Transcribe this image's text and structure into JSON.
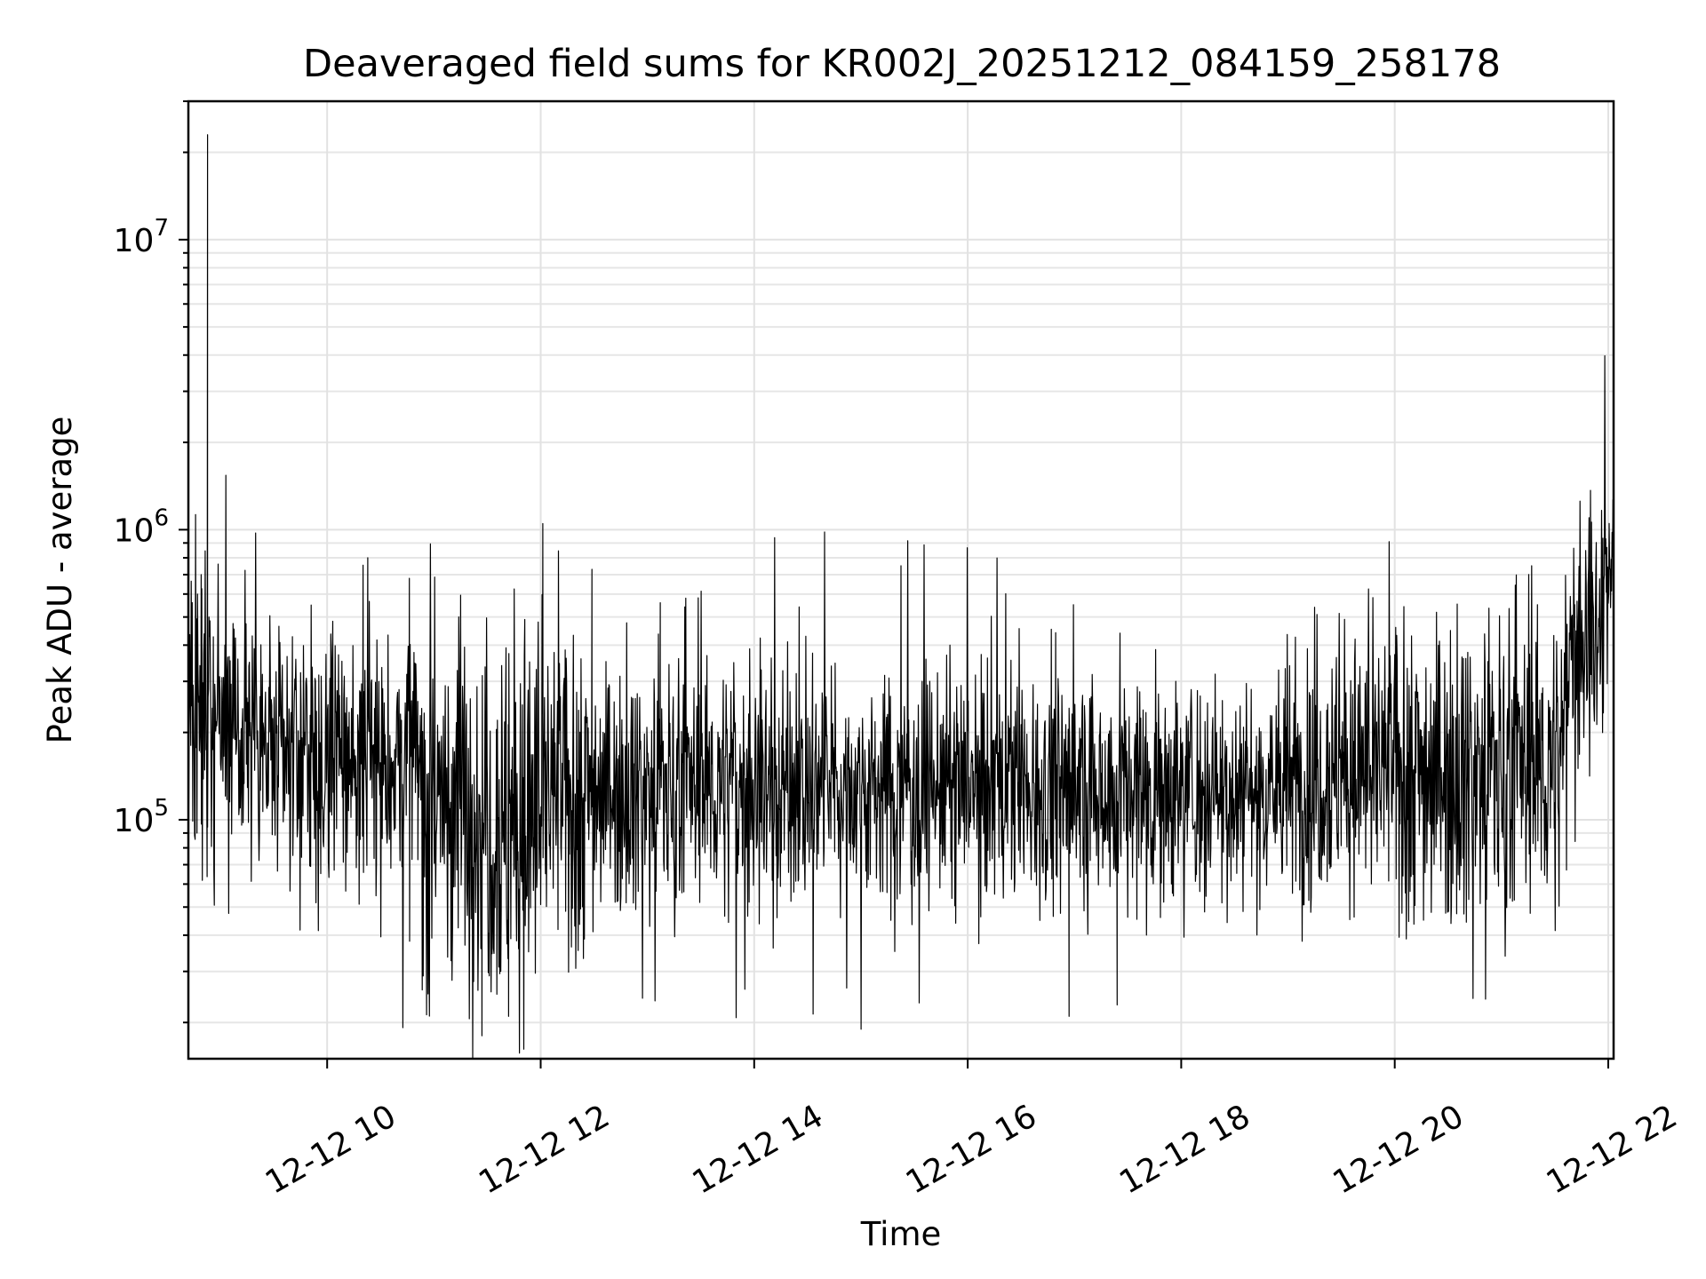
{
  "chart_data": {
    "type": "line",
    "title": "Deaveraged field sums for KR002J_20251212_084159_258178",
    "xlabel": "Time",
    "ylabel": "Peak ADU - average",
    "yscale": "log",
    "xlim_hours": [
      8.7,
      22.05
    ],
    "ylim": [
      15000,
      30000000
    ],
    "grid": true,
    "x_ticks": [
      {
        "hour": 10,
        "label": "12-12 10"
      },
      {
        "hour": 12,
        "label": "12-12 12"
      },
      {
        "hour": 14,
        "label": "12-12 14"
      },
      {
        "hour": 16,
        "label": "12-12 16"
      },
      {
        "hour": 18,
        "label": "12-12 18"
      },
      {
        "hour": 20,
        "label": "12-12 20"
      },
      {
        "hour": 22,
        "label": "12-12 22"
      }
    ],
    "y_ticks": [
      {
        "value": 100000,
        "base": "10",
        "exp": "5"
      },
      {
        "value": 1000000,
        "base": "10",
        "exp": "6"
      },
      {
        "value": 10000000,
        "base": "10",
        "exp": "7"
      }
    ],
    "series": [
      {
        "name": "deaveraged field sum",
        "color": "#000000",
        "segments": [
          {
            "start": 8.7,
            "end": 9.4,
            "level": 230000,
            "spread": 0.25
          },
          {
            "start": 9.4,
            "end": 9.85,
            "level": 170000,
            "spread": 0.22
          },
          {
            "start": 9.85,
            "end": 10.85,
            "level": 160000,
            "spread": 0.24
          },
          {
            "start": 10.85,
            "end": 11.5,
            "level": 120000,
            "spread": 0.32
          },
          {
            "start": 11.5,
            "end": 12.0,
            "level": 100000,
            "spread": 0.34
          },
          {
            "start": 12.0,
            "end": 12.45,
            "level": 120000,
            "spread": 0.26
          },
          {
            "start": 12.45,
            "end": 19.3,
            "level": 130000,
            "spread": 0.2
          },
          {
            "start": 19.3,
            "end": 20.0,
            "level": 150000,
            "spread": 0.22
          },
          {
            "start": 20.0,
            "end": 21.6,
            "level": 150000,
            "spread": 0.25
          },
          {
            "start": 21.6,
            "end": 21.95,
            "level": 420000,
            "spread": 0.2
          },
          {
            "start": 21.95,
            "end": 22.05,
            "level": 800000,
            "spread": 0.1
          }
        ],
        "spikes": [
          {
            "hour": 8.88,
            "value": 23000000
          },
          {
            "hour": 8.82,
            "value": 700000
          },
          {
            "hour": 10.38,
            "value": 800000
          },
          {
            "hour": 10.77,
            "value": 680000
          },
          {
            "hour": 12.02,
            "value": 1050000
          },
          {
            "hour": 12.48,
            "value": 730000
          },
          {
            "hour": 13.12,
            "value": 560000
          },
          {
            "hour": 11.45,
            "value": 18000
          },
          {
            "hour": 11.7,
            "value": 21000
          },
          {
            "hour": 16.95,
            "value": 21000
          },
          {
            "hour": 17.4,
            "value": 23000
          },
          {
            "hour": 21.82,
            "value": 1100000
          },
          {
            "hour": 22.05,
            "value": 1200000
          }
        ]
      }
    ]
  }
}
